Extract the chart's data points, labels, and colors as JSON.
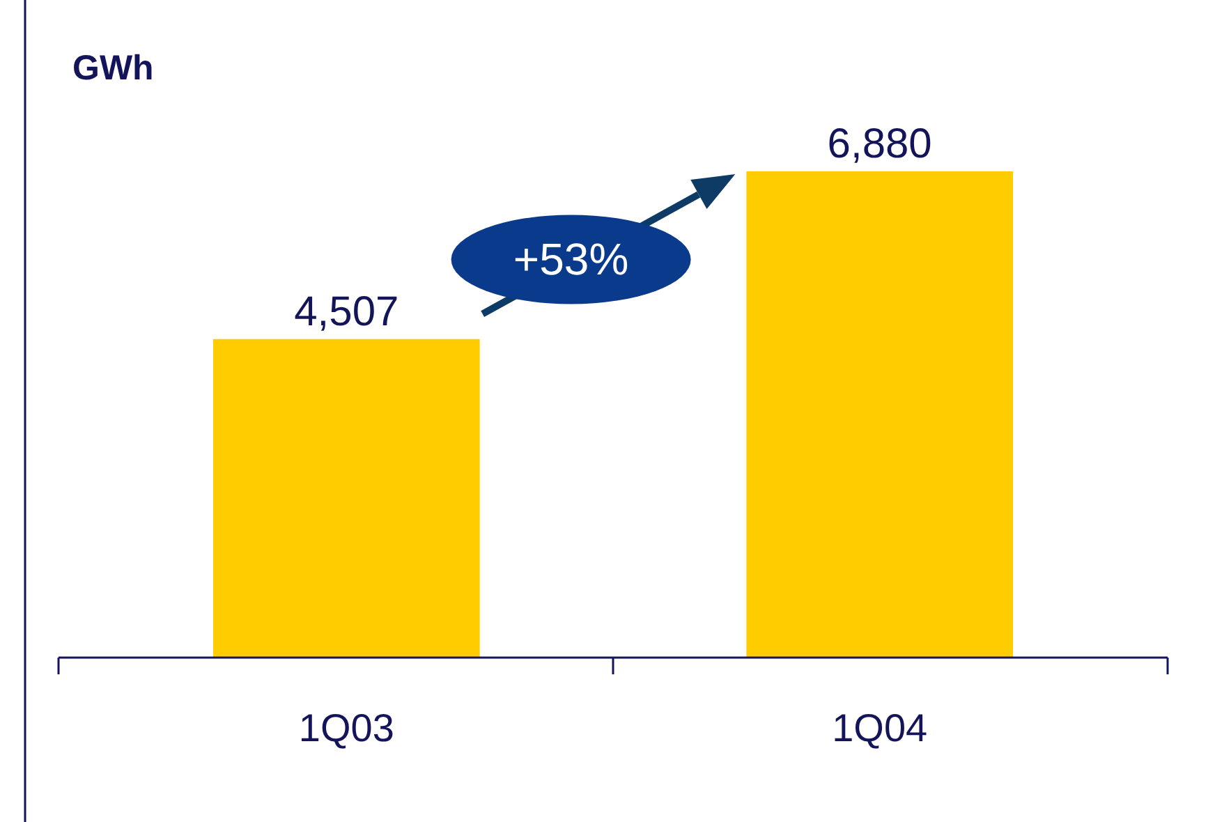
{
  "chart_data": {
    "type": "bar",
    "ylabel": "GWh",
    "categories": [
      "1Q03",
      "1Q04"
    ],
    "values": [
      4507,
      6880
    ],
    "color": "#ffcc00",
    "value_labels": [
      "4,507",
      "6,880"
    ],
    "annotations": [
      "+53%"
    ]
  }
}
